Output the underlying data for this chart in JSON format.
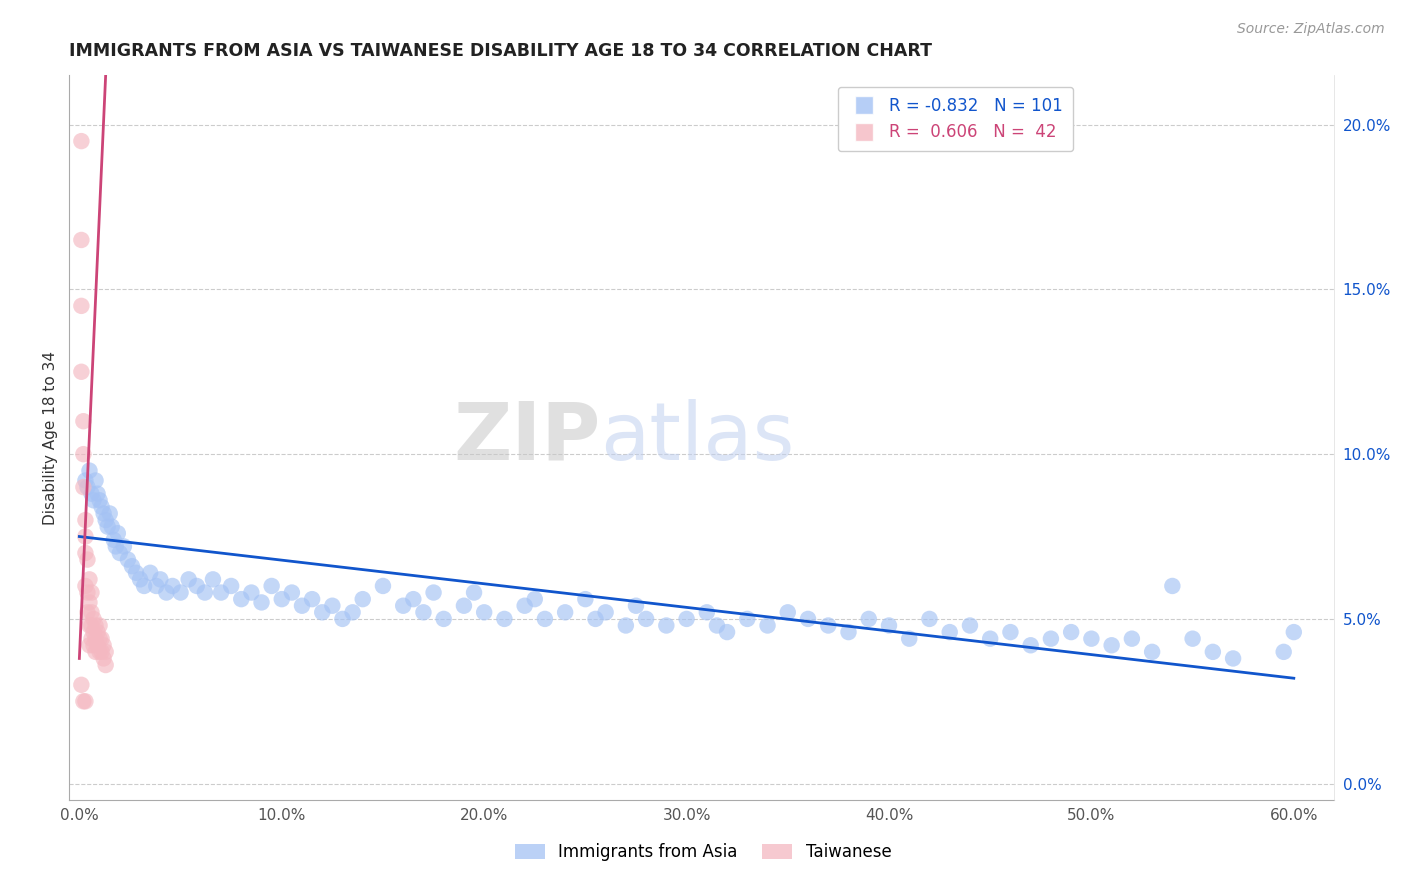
{
  "title": "IMMIGRANTS FROM ASIA VS TAIWANESE DISABILITY AGE 18 TO 34 CORRELATION CHART",
  "source": "Source: ZipAtlas.com",
  "ylabel": "Disability Age 18 to 34",
  "xlim": [
    -0.005,
    0.62
  ],
  "ylim": [
    -0.005,
    0.215
  ],
  "right_yticks": [
    0.0,
    0.05,
    0.1,
    0.15,
    0.2
  ],
  "right_yticklabels": [
    "0.0%",
    "5.0%",
    "10.0%",
    "15.0%",
    "20.0%"
  ],
  "xticks": [
    0.0,
    0.1,
    0.2,
    0.3,
    0.4,
    0.5,
    0.6
  ],
  "xticklabels": [
    "0.0%",
    "10.0%",
    "20.0%",
    "30.0%",
    "40.0%",
    "50.0%",
    "60.0%"
  ],
  "blue_color": "#a4c2f4",
  "pink_color": "#f4b8c1",
  "blue_line_color": "#1155cc",
  "pink_line_color": "#cc4477",
  "legend_blue_label": "R = -0.832   N = 101",
  "legend_pink_label": "R =  0.606   N =  42",
  "blue_line_x": [
    0.0,
    0.6
  ],
  "blue_line_y": [
    0.075,
    0.032
  ],
  "pink_line_x": [
    0.0,
    0.013
  ],
  "pink_line_y": [
    0.038,
    0.215
  ],
  "blue_scatter_x": [
    0.003,
    0.004,
    0.005,
    0.006,
    0.007,
    0.008,
    0.009,
    0.01,
    0.011,
    0.012,
    0.013,
    0.014,
    0.015,
    0.016,
    0.017,
    0.018,
    0.019,
    0.02,
    0.022,
    0.024,
    0.026,
    0.028,
    0.03,
    0.032,
    0.035,
    0.038,
    0.04,
    0.043,
    0.046,
    0.05,
    0.054,
    0.058,
    0.062,
    0.066,
    0.07,
    0.075,
    0.08,
    0.085,
    0.09,
    0.095,
    0.1,
    0.105,
    0.11,
    0.115,
    0.12,
    0.125,
    0.13,
    0.135,
    0.14,
    0.15,
    0.16,
    0.165,
    0.17,
    0.175,
    0.18,
    0.19,
    0.195,
    0.2,
    0.21,
    0.22,
    0.225,
    0.23,
    0.24,
    0.25,
    0.255,
    0.26,
    0.27,
    0.275,
    0.28,
    0.29,
    0.3,
    0.31,
    0.315,
    0.32,
    0.33,
    0.34,
    0.35,
    0.36,
    0.37,
    0.38,
    0.39,
    0.4,
    0.41,
    0.42,
    0.43,
    0.44,
    0.45,
    0.46,
    0.47,
    0.48,
    0.49,
    0.5,
    0.51,
    0.52,
    0.53,
    0.54,
    0.55,
    0.56,
    0.57,
    0.595,
    0.6
  ],
  "blue_scatter_y": [
    0.092,
    0.09,
    0.095,
    0.088,
    0.086,
    0.092,
    0.088,
    0.086,
    0.084,
    0.082,
    0.08,
    0.078,
    0.082,
    0.078,
    0.074,
    0.072,
    0.076,
    0.07,
    0.072,
    0.068,
    0.066,
    0.064,
    0.062,
    0.06,
    0.064,
    0.06,
    0.062,
    0.058,
    0.06,
    0.058,
    0.062,
    0.06,
    0.058,
    0.062,
    0.058,
    0.06,
    0.056,
    0.058,
    0.055,
    0.06,
    0.056,
    0.058,
    0.054,
    0.056,
    0.052,
    0.054,
    0.05,
    0.052,
    0.056,
    0.06,
    0.054,
    0.056,
    0.052,
    0.058,
    0.05,
    0.054,
    0.058,
    0.052,
    0.05,
    0.054,
    0.056,
    0.05,
    0.052,
    0.056,
    0.05,
    0.052,
    0.048,
    0.054,
    0.05,
    0.048,
    0.05,
    0.052,
    0.048,
    0.046,
    0.05,
    0.048,
    0.052,
    0.05,
    0.048,
    0.046,
    0.05,
    0.048,
    0.044,
    0.05,
    0.046,
    0.048,
    0.044,
    0.046,
    0.042,
    0.044,
    0.046,
    0.044,
    0.042,
    0.044,
    0.04,
    0.06,
    0.044,
    0.04,
    0.038,
    0.04,
    0.046
  ],
  "pink_scatter_x": [
    0.001,
    0.001,
    0.001,
    0.001,
    0.002,
    0.002,
    0.002,
    0.003,
    0.003,
    0.003,
    0.003,
    0.004,
    0.004,
    0.004,
    0.005,
    0.005,
    0.005,
    0.005,
    0.006,
    0.006,
    0.006,
    0.006,
    0.007,
    0.007,
    0.007,
    0.008,
    0.008,
    0.008,
    0.009,
    0.009,
    0.01,
    0.01,
    0.01,
    0.011,
    0.011,
    0.012,
    0.012,
    0.013,
    0.013,
    0.001,
    0.002,
    0.003
  ],
  "pink_scatter_y": [
    0.195,
    0.165,
    0.145,
    0.125,
    0.11,
    0.1,
    0.09,
    0.08,
    0.075,
    0.07,
    0.06,
    0.068,
    0.058,
    0.052,
    0.062,
    0.055,
    0.048,
    0.042,
    0.058,
    0.052,
    0.048,
    0.044,
    0.05,
    0.046,
    0.042,
    0.048,
    0.044,
    0.04,
    0.046,
    0.042,
    0.048,
    0.044,
    0.04,
    0.044,
    0.04,
    0.042,
    0.038,
    0.04,
    0.036,
    0.03,
    0.025,
    0.025
  ]
}
